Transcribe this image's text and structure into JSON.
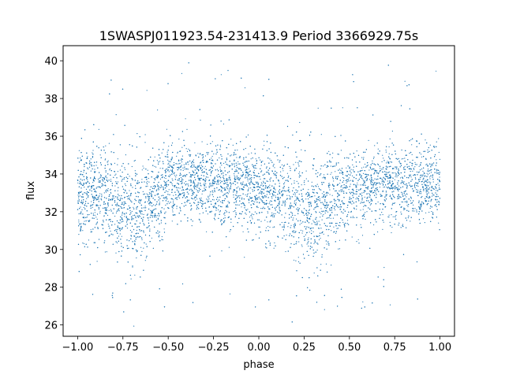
{
  "chart_data": {
    "type": "scatter",
    "title": "1SWASPJ011923.54-231413.9 Period 3366929.75s",
    "xlabel": "phase",
    "ylabel": "flux",
    "xlim": [
      -1.08,
      1.08
    ],
    "ylim": [
      25.4,
      40.8
    ],
    "xticks": [
      -1.0,
      -0.75,
      -0.5,
      -0.25,
      0.0,
      0.25,
      0.5,
      0.75,
      1.0
    ],
    "xtick_labels": [
      "−1.00",
      "−0.75",
      "−0.50",
      "−0.25",
      "0.00",
      "0.25",
      "0.50",
      "0.75",
      "1.00"
    ],
    "yticks": [
      26,
      28,
      30,
      32,
      34,
      36,
      38,
      40
    ],
    "ytick_labels": [
      "26",
      "28",
      "30",
      "32",
      "34",
      "36",
      "38",
      "40"
    ],
    "grid": false,
    "legend": "none",
    "point_color": "#1f77b4",
    "series": [
      {
        "x": [
          -1.0,
          -0.9,
          -0.8,
          -0.7,
          -0.6,
          -0.5,
          -0.4,
          -0.3,
          -0.2,
          -0.1,
          0.0,
          0.1,
          0.2,
          0.3,
          0.4,
          0.5,
          0.6,
          0.7,
          0.8,
          0.9,
          1.0
        ],
        "y": [
          32.8,
          33.2,
          32.4,
          31.9,
          32.6,
          33.4,
          33.5,
          33.6,
          33.3,
          33.4,
          33.2,
          32.6,
          32.3,
          31.9,
          32.6,
          33.3,
          33.2,
          33.6,
          33.3,
          33.4,
          33.5
        ],
        "spread": [
          1.2,
          1.3,
          1.4,
          1.5,
          1.3,
          1.1,
          1.0,
          1.0,
          1.0,
          1.0,
          1.0,
          1.3,
          1.4,
          1.5,
          1.3,
          1.1,
          1.0,
          1.0,
          1.0,
          1.0,
          1.0
        ]
      }
    ]
  }
}
